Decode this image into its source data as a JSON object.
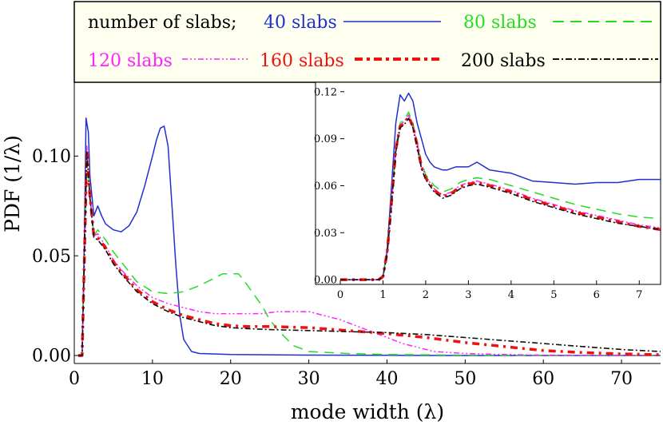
{
  "chart_data": [
    {
      "type": "line",
      "xlabel": "mode width (λ)",
      "ylabel": "PDF (1/λ)",
      "xlim": [
        0,
        75
      ],
      "ylim": [
        -0.004,
        0.137
      ],
      "xticks": [
        0,
        10,
        20,
        30,
        40,
        50,
        60,
        70
      ],
      "xtick_labels": [
        "0",
        "10",
        "20",
        "30",
        "40",
        "50",
        "60",
        "70"
      ],
      "yticks": [
        0,
        0.05,
        0.1
      ],
      "ytick_labels": [
        "0.00",
        "0.05",
        "0.10"
      ],
      "grid": false,
      "legend": {
        "position": "top",
        "title": "number of slabs;",
        "entries": [
          "40 slabs",
          "80 slabs",
          "120 slabs",
          "160 slabs",
          "200 slabs"
        ]
      },
      "series": [
        {
          "name": "40 slabs",
          "color": "#1f2fd0",
          "style": "solid",
          "x": [
            0.5,
            1.0,
            1.3,
            1.5,
            1.8,
            2.0,
            2.5,
            3.0,
            3.5,
            4.0,
            5,
            6,
            7,
            8,
            9,
            10,
            10.5,
            11,
            11.5,
            12,
            12.5,
            13,
            13.5,
            14,
            15,
            16,
            20,
            30,
            40,
            50,
            60,
            75
          ],
          "y": [
            0,
            0,
            0.06,
            0.119,
            0.112,
            0.09,
            0.07,
            0.075,
            0.07,
            0.066,
            0.063,
            0.062,
            0.065,
            0.072,
            0.085,
            0.1,
            0.108,
            0.114,
            0.115,
            0.105,
            0.075,
            0.045,
            0.02,
            0.008,
            0.002,
            0.001,
            0.0005,
            0.0002,
            0.0001,
            0,
            0,
            0
          ]
        },
        {
          "name": "80 slabs",
          "color": "#22dd22",
          "style": "dashed",
          "x": [
            0.5,
            1.0,
            1.3,
            1.6,
            2.0,
            2.5,
            3,
            4,
            5,
            6,
            8,
            10,
            12,
            14,
            16,
            18,
            19,
            20,
            21,
            22,
            24,
            25,
            26,
            27,
            28,
            30,
            35,
            40,
            50,
            60,
            75
          ],
          "y": [
            0,
            0,
            0.05,
            0.105,
            0.08,
            0.06,
            0.063,
            0.058,
            0.052,
            0.047,
            0.037,
            0.032,
            0.031,
            0.032,
            0.035,
            0.039,
            0.041,
            0.041,
            0.041,
            0.036,
            0.025,
            0.018,
            0.013,
            0.009,
            0.005,
            0.002,
            0.001,
            0.0005,
            0.0002,
            0.0001,
            0
          ]
        },
        {
          "name": "120 slabs",
          "color": "#ff22ff",
          "style": "dashdotdot",
          "x": [
            0.5,
            1.0,
            1.3,
            1.6,
            2.0,
            2.5,
            3,
            4,
            5,
            6,
            8,
            10,
            12,
            14,
            16,
            18,
            20,
            22,
            24,
            26,
            28,
            29,
            30,
            32,
            34,
            36,
            38,
            40,
            42,
            44,
            46,
            48,
            50,
            55,
            60,
            75
          ],
          "y": [
            0,
            0,
            0.05,
            0.105,
            0.08,
            0.06,
            0.061,
            0.055,
            0.048,
            0.043,
            0.035,
            0.029,
            0.026,
            0.024,
            0.022,
            0.021,
            0.021,
            0.021,
            0.021,
            0.022,
            0.022,
            0.022,
            0.022,
            0.02,
            0.018,
            0.015,
            0.012,
            0.009,
            0.006,
            0.004,
            0.002,
            0.0015,
            0.001,
            0.0005,
            0.0002,
            0
          ]
        },
        {
          "name": "160 slabs",
          "color": "#ee1111",
          "style": "heavydash",
          "x": [
            0.5,
            1.0,
            1.3,
            1.6,
            2.0,
            2.5,
            3,
            4,
            5,
            6,
            8,
            10,
            12,
            14,
            16,
            18,
            20,
            22,
            25,
            30,
            35,
            40,
            45,
            50,
            55,
            60,
            65,
            70,
            75
          ],
          "y": [
            0,
            0,
            0.05,
            0.103,
            0.08,
            0.06,
            0.059,
            0.054,
            0.047,
            0.042,
            0.033,
            0.027,
            0.023,
            0.02,
            0.018,
            0.016,
            0.015,
            0.0145,
            0.0145,
            0.014,
            0.0125,
            0.011,
            0.009,
            0.0065,
            0.0045,
            0.0025,
            0.0015,
            0.0008,
            0.0004
          ]
        },
        {
          "name": "200 slabs",
          "color": "#111111",
          "style": "dashdot",
          "x": [
            0.5,
            1.0,
            1.3,
            1.6,
            2.0,
            2.5,
            3,
            4,
            5,
            6,
            8,
            10,
            12,
            14,
            16,
            18,
            20,
            22,
            25,
            30,
            35,
            40,
            45,
            50,
            55,
            60,
            65,
            70,
            75
          ],
          "y": [
            0,
            0,
            0.05,
            0.102,
            0.079,
            0.059,
            0.058,
            0.053,
            0.046,
            0.041,
            0.032,
            0.026,
            0.022,
            0.019,
            0.017,
            0.015,
            0.014,
            0.0135,
            0.013,
            0.0125,
            0.012,
            0.0115,
            0.0105,
            0.009,
            0.0075,
            0.006,
            0.0045,
            0.003,
            0.002
          ]
        }
      ]
    },
    {
      "type": "line",
      "role": "inset",
      "xlim": [
        0,
        7.5
      ],
      "ylim": [
        -0.003,
        0.126
      ],
      "xticks": [
        0,
        1,
        2,
        3,
        4,
        5,
        6,
        7
      ],
      "xtick_labels": [
        "0",
        "1",
        "2",
        "3",
        "4",
        "5",
        "6",
        "7"
      ],
      "yticks": [
        0,
        0.03,
        0.06,
        0.09,
        0.12
      ],
      "ytick_labels": [
        "0.00",
        "0.03",
        "0.06",
        "0.09",
        "0.12"
      ],
      "series": [
        {
          "name": "40 slabs",
          "color": "#1f2fd0",
          "style": "solid",
          "x": [
            0,
            0.5,
            0.9,
            1.0,
            1.1,
            1.2,
            1.3,
            1.4,
            1.5,
            1.6,
            1.7,
            1.8,
            1.9,
            2.0,
            2.1,
            2.2,
            2.3,
            2.4,
            2.5,
            2.7,
            3.0,
            3.2,
            3.5,
            4.0,
            4.5,
            5.0,
            5.5,
            6.0,
            6.5,
            7.0,
            7.5
          ],
          "y": [
            0,
            0,
            0,
            0.002,
            0.02,
            0.06,
            0.1,
            0.118,
            0.114,
            0.119,
            0.114,
            0.1,
            0.09,
            0.08,
            0.075,
            0.072,
            0.071,
            0.07,
            0.07,
            0.072,
            0.072,
            0.075,
            0.07,
            0.068,
            0.063,
            0.062,
            0.061,
            0.062,
            0.062,
            0.064,
            0.064
          ]
        },
        {
          "name": "80 slabs",
          "color": "#22dd22",
          "style": "dashed",
          "x": [
            0,
            0.5,
            0.9,
            1.0,
            1.1,
            1.2,
            1.3,
            1.4,
            1.5,
            1.6,
            1.7,
            1.8,
            1.9,
            2.0,
            2.2,
            2.4,
            2.6,
            2.8,
            3.0,
            3.2,
            3.5,
            4.0,
            4.5,
            5.0,
            5.5,
            6.0,
            6.5,
            7.0,
            7.5
          ],
          "y": [
            0,
            0,
            0,
            0.002,
            0.018,
            0.05,
            0.085,
            0.1,
            0.102,
            0.107,
            0.1,
            0.088,
            0.075,
            0.067,
            0.06,
            0.056,
            0.058,
            0.062,
            0.064,
            0.065,
            0.064,
            0.06,
            0.056,
            0.052,
            0.048,
            0.045,
            0.042,
            0.04,
            0.039
          ]
        },
        {
          "name": "120 slabs",
          "color": "#ff22ff",
          "style": "dashdotdot",
          "x": [
            0,
            0.5,
            0.9,
            1.0,
            1.1,
            1.2,
            1.3,
            1.4,
            1.5,
            1.6,
            1.7,
            1.8,
            1.9,
            2.0,
            2.2,
            2.4,
            2.6,
            2.8,
            3.0,
            3.2,
            3.5,
            4.0,
            4.5,
            5.0,
            5.5,
            6.0,
            6.5,
            7.0,
            7.5
          ],
          "y": [
            0,
            0,
            0,
            0.002,
            0.018,
            0.05,
            0.085,
            0.099,
            0.101,
            0.105,
            0.099,
            0.087,
            0.073,
            0.066,
            0.058,
            0.054,
            0.056,
            0.06,
            0.062,
            0.063,
            0.061,
            0.057,
            0.052,
            0.048,
            0.044,
            0.041,
            0.038,
            0.035,
            0.033
          ]
        },
        {
          "name": "160 slabs",
          "color": "#ee1111",
          "style": "heavydash",
          "x": [
            0,
            0.5,
            0.9,
            1.0,
            1.1,
            1.2,
            1.3,
            1.4,
            1.5,
            1.6,
            1.7,
            1.8,
            1.9,
            2.0,
            2.2,
            2.4,
            2.6,
            2.8,
            3.0,
            3.2,
            3.5,
            4.0,
            4.5,
            5.0,
            5.5,
            6.0,
            6.5,
            7.0,
            7.5
          ],
          "y": [
            0,
            0,
            0,
            0.002,
            0.018,
            0.05,
            0.083,
            0.098,
            0.1,
            0.104,
            0.098,
            0.086,
            0.072,
            0.065,
            0.057,
            0.053,
            0.055,
            0.059,
            0.061,
            0.062,
            0.06,
            0.056,
            0.051,
            0.047,
            0.043,
            0.04,
            0.037,
            0.034,
            0.032
          ]
        },
        {
          "name": "200 slabs",
          "color": "#111111",
          "style": "dashdot",
          "x": [
            0,
            0.5,
            0.9,
            1.0,
            1.1,
            1.2,
            1.3,
            1.4,
            1.5,
            1.6,
            1.7,
            1.8,
            1.9,
            2.0,
            2.2,
            2.4,
            2.6,
            2.8,
            3.0,
            3.2,
            3.5,
            4.0,
            4.5,
            5.0,
            5.5,
            6.0,
            6.5,
            7.0,
            7.5
          ],
          "y": [
            0,
            0,
            0,
            0.002,
            0.017,
            0.048,
            0.082,
            0.097,
            0.099,
            0.103,
            0.097,
            0.085,
            0.071,
            0.064,
            0.056,
            0.052,
            0.054,
            0.058,
            0.06,
            0.061,
            0.059,
            0.055,
            0.05,
            0.046,
            0.042,
            0.039,
            0.036,
            0.034,
            0.032
          ]
        }
      ]
    }
  ]
}
